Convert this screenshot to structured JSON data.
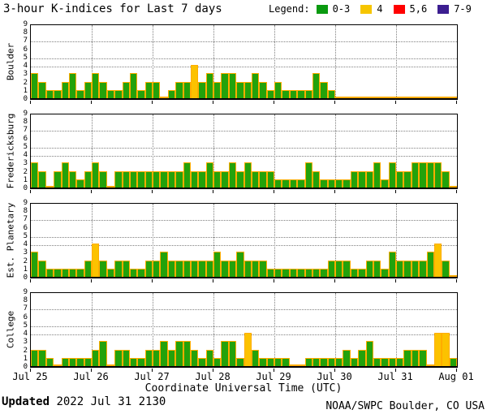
{
  "title": "3-hour K-indices for Last 7 days",
  "legend": {
    "label": "Legend:",
    "items": [
      {
        "label": "0-3",
        "color": "#0A9A10"
      },
      {
        "label": "4",
        "color": "#F6C500"
      },
      {
        "label": "5,6",
        "color": "#FF0000"
      },
      {
        "label": "7-9",
        "color": "#3C1E90"
      }
    ]
  },
  "footer": {
    "updated_label": "Updated",
    "updated_value": " 2022 Jul 31 2130",
    "credit": "NOAA/SWPC Boulder, CO USA"
  },
  "chart_data": {
    "type": "bar",
    "title": "3-hour K-indices for Last 7 days",
    "xlabel": "Coordinate Universal Time (UTC)",
    "ylim": [
      0,
      9
    ],
    "y_ticks": [
      0,
      1,
      2,
      3,
      4,
      5,
      6,
      7,
      8,
      9
    ],
    "gridline_values": [
      4,
      5,
      7
    ],
    "grid": "dotted",
    "x_tick_labels": [
      "Jul 25",
      "Jul 26",
      "Jul 27",
      "Jul 28",
      "Jul 29",
      "Jul 30",
      "Jul 31",
      "Aug 01"
    ],
    "bars_per_day": 8,
    "bar_interval_hours": 3,
    "color_rules": {
      "green_max": 3,
      "yellow_max": 4,
      "red_max": 6,
      "colors": {
        "green": "#23A20B",
        "yellow": "#FCC200",
        "red": "#FF0000",
        "purple": "#3C1E90"
      },
      "outline": "#FFAC00"
    },
    "series": [
      {
        "name": "Boulder",
        "values": [
          3,
          2,
          1,
          1,
          2,
          3,
          1,
          2,
          3,
          2,
          1,
          1,
          2,
          3,
          1,
          2,
          2,
          0,
          1,
          2,
          2,
          4,
          2,
          3,
          2,
          3,
          3,
          2,
          2,
          3,
          2,
          1,
          2,
          1,
          1,
          1,
          1,
          3,
          2,
          1,
          0,
          0,
          0,
          0,
          0,
          0,
          0,
          0,
          0,
          0,
          0,
          0,
          0,
          0,
          0,
          0
        ]
      },
      {
        "name": "Fredericksburg",
        "values": [
          3,
          2,
          0,
          2,
          3,
          2,
          1,
          2,
          3,
          2,
          0,
          2,
          2,
          2,
          2,
          2,
          2,
          2,
          2,
          2,
          3,
          2,
          2,
          3,
          2,
          2,
          3,
          2,
          3,
          2,
          2,
          2,
          1,
          1,
          1,
          1,
          3,
          2,
          1,
          1,
          1,
          1,
          2,
          2,
          2,
          3,
          1,
          3,
          2,
          2,
          3,
          3,
          3,
          3,
          2,
          0
        ]
      },
      {
        "name": "Est. Planetary",
        "values": [
          3,
          2,
          1,
          1,
          1,
          1,
          1,
          2,
          4,
          2,
          1,
          2,
          2,
          1,
          1,
          2,
          2,
          3,
          2,
          2,
          2,
          2,
          2,
          2,
          3,
          2,
          2,
          3,
          2,
          2,
          2,
          1,
          1,
          1,
          1,
          1,
          1,
          1,
          1,
          2,
          2,
          2,
          1,
          1,
          2,
          2,
          1,
          3,
          2,
          2,
          2,
          2,
          3,
          4,
          2,
          0
        ]
      },
      {
        "name": "College",
        "values": [
          2,
          2,
          1,
          0,
          1,
          1,
          1,
          1,
          2,
          3,
          0,
          2,
          2,
          1,
          1,
          2,
          2,
          3,
          2,
          3,
          3,
          2,
          1,
          2,
          1,
          3,
          3,
          1,
          4,
          2,
          1,
          1,
          1,
          1,
          0,
          0,
          1,
          1,
          1,
          1,
          1,
          2,
          1,
          2,
          3,
          1,
          1,
          1,
          1,
          2,
          2,
          2,
          0,
          4,
          4,
          1
        ]
      }
    ]
  }
}
